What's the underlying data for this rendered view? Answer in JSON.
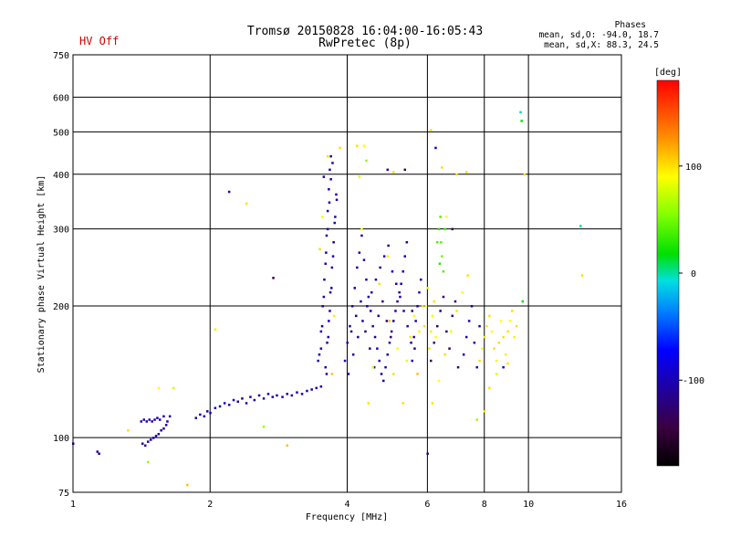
{
  "header": {
    "title_line1": "Tromsø 20150828 16:04:00-16:05:43",
    "title_line2": "RwPretec (8p)",
    "hv_status": "HV Off",
    "hv_color": "#d00000"
  },
  "stats": {
    "heading": "Phases",
    "line1": "mean, sd,O: -94.0, 18.7",
    "line2": "mean, sd,X:  88.3, 24.5"
  },
  "colorbar": {
    "unit_label": "[deg]",
    "ticks": [
      "100",
      "0",
      "-100"
    ],
    "tick_values": [
      100,
      0,
      -100
    ],
    "range": [
      -180,
      180
    ]
  },
  "chart_data": {
    "type": "scatter",
    "xlabel": "Frequency [MHz]",
    "ylabel": "Stationary phase Virtual Height [km]",
    "x_scale": "log",
    "y_scale": "log",
    "xlim": [
      1,
      16
    ],
    "ylim": [
      75,
      750
    ],
    "x_ticks": [
      1,
      2,
      4,
      6,
      8,
      10,
      16
    ],
    "x_tick_labels": [
      "1",
      "2",
      "4",
      "6",
      "8",
      "10",
      "16"
    ],
    "y_ticks": [
      75,
      100,
      200,
      300,
      400,
      500,
      600,
      750
    ],
    "y_tick_labels": [
      "75",
      "100",
      "200",
      "300",
      "400",
      "500",
      "600",
      "750"
    ],
    "grid": true,
    "color_variable": "phase [deg]",
    "points": [
      [
        1.0,
        97,
        -100
      ],
      [
        1.13,
        93,
        -110
      ],
      [
        1.14,
        92,
        -120
      ],
      [
        1.32,
        104,
        100
      ],
      [
        1.41,
        109,
        -100
      ],
      [
        1.43,
        110,
        -110
      ],
      [
        1.45,
        109,
        -105
      ],
      [
        1.47,
        110,
        -100
      ],
      [
        1.49,
        109,
        -110
      ],
      [
        1.51,
        110,
        -100
      ],
      [
        1.53,
        111,
        -105
      ],
      [
        1.55,
        110,
        -100
      ],
      [
        1.58,
        112,
        -95
      ],
      [
        1.61,
        109,
        -100
      ],
      [
        1.63,
        112,
        -110
      ],
      [
        1.42,
        97,
        -105
      ],
      [
        1.44,
        96,
        -110
      ],
      [
        1.46,
        98,
        -100
      ],
      [
        1.48,
        99,
        -105
      ],
      [
        1.5,
        100,
        -100
      ],
      [
        1.52,
        101,
        -110
      ],
      [
        1.54,
        102,
        -95
      ],
      [
        1.56,
        104,
        -100
      ],
      [
        1.58,
        105,
        -110
      ],
      [
        1.6,
        107,
        -100
      ],
      [
        1.46,
        88,
        60
      ],
      [
        1.54,
        130,
        90
      ],
      [
        1.66,
        130,
        80
      ],
      [
        1.78,
        78,
        110
      ],
      [
        1.86,
        111,
        -100
      ],
      [
        1.9,
        113,
        -110
      ],
      [
        1.94,
        112,
        -100
      ],
      [
        1.97,
        115,
        -105
      ],
      [
        2.0,
        114,
        -100
      ],
      [
        2.05,
        117,
        -95
      ],
      [
        2.1,
        118,
        -110
      ],
      [
        2.15,
        120,
        -100
      ],
      [
        2.2,
        119,
        -105
      ],
      [
        2.25,
        122,
        -100
      ],
      [
        2.3,
        121,
        -95
      ],
      [
        2.35,
        123,
        -110
      ],
      [
        2.4,
        120,
        -100
      ],
      [
        2.45,
        124,
        -100
      ],
      [
        2.5,
        122,
        -105
      ],
      [
        2.56,
        125,
        -100
      ],
      [
        2.62,
        123,
        -110
      ],
      [
        2.68,
        126,
        -100
      ],
      [
        2.74,
        124,
        -105
      ],
      [
        2.8,
        125,
        -100
      ],
      [
        2.88,
        124,
        -95
      ],
      [
        2.95,
        126,
        -100
      ],
      [
        3.02,
        125,
        -110
      ],
      [
        3.1,
        127,
        -100
      ],
      [
        3.18,
        126,
        -105
      ],
      [
        3.26,
        128,
        -100
      ],
      [
        3.34,
        129,
        -110
      ],
      [
        3.42,
        130,
        -100
      ],
      [
        3.5,
        131,
        -95
      ],
      [
        2.05,
        177,
        80
      ],
      [
        2.2,
        365,
        -100
      ],
      [
        2.4,
        343,
        100
      ],
      [
        2.62,
        106,
        60
      ],
      [
        2.75,
        232,
        -140
      ],
      [
        2.95,
        96,
        110
      ],
      [
        3.45,
        150,
        -100
      ],
      [
        3.5,
        160,
        -110
      ],
      [
        3.52,
        180,
        -100
      ],
      [
        3.55,
        210,
        -105
      ],
      [
        3.58,
        250,
        -100
      ],
      [
        3.6,
        290,
        -110
      ],
      [
        3.62,
        330,
        -100
      ],
      [
        3.64,
        370,
        -105
      ],
      [
        3.66,
        410,
        -100
      ],
      [
        3.68,
        440,
        -110
      ],
      [
        3.47,
        155,
        -100
      ],
      [
        3.5,
        175,
        -95
      ],
      [
        3.53,
        200,
        -100
      ],
      [
        3.56,
        230,
        -110
      ],
      [
        3.59,
        265,
        -100
      ],
      [
        3.62,
        300,
        -105
      ],
      [
        3.65,
        345,
        -100
      ],
      [
        3.68,
        390,
        -100
      ],
      [
        3.71,
        425,
        -110
      ],
      [
        3.6,
        140,
        -100
      ],
      [
        3.63,
        170,
        -105
      ],
      [
        3.66,
        195,
        -100
      ],
      [
        3.69,
        220,
        -110
      ],
      [
        3.72,
        260,
        -100
      ],
      [
        3.75,
        310,
        -95
      ],
      [
        3.78,
        360,
        -100
      ],
      [
        3.55,
        395,
        -110
      ],
      [
        3.58,
        145,
        -100
      ],
      [
        3.61,
        165,
        -110
      ],
      [
        3.64,
        185,
        -100
      ],
      [
        3.67,
        215,
        -105
      ],
      [
        3.7,
        245,
        -100
      ],
      [
        3.73,
        280,
        -110
      ],
      [
        3.76,
        320,
        -100
      ],
      [
        3.79,
        350,
        -105
      ],
      [
        3.48,
        270,
        100
      ],
      [
        3.52,
        320,
        90
      ],
      [
        3.7,
        140,
        110
      ],
      [
        3.74,
        190,
        95
      ],
      [
        3.62,
        440,
        100
      ],
      [
        3.85,
        460,
        100
      ],
      [
        3.95,
        150,
        -100
      ],
      [
        4.0,
        165,
        -105
      ],
      [
        4.05,
        180,
        -100
      ],
      [
        4.1,
        200,
        -110
      ],
      [
        4.15,
        220,
        -100
      ],
      [
        4.2,
        245,
        -105
      ],
      [
        4.25,
        265,
        -100
      ],
      [
        4.3,
        290,
        -110
      ],
      [
        4.35,
        255,
        -100
      ],
      [
        4.4,
        230,
        -95
      ],
      [
        4.45,
        210,
        -100
      ],
      [
        4.5,
        195,
        -105
      ],
      [
        4.55,
        180,
        -100
      ],
      [
        4.6,
        170,
        -110
      ],
      [
        4.65,
        160,
        -100
      ],
      [
        4.7,
        150,
        -105
      ],
      [
        4.75,
        140,
        -100
      ],
      [
        4.8,
        135,
        -110
      ],
      [
        4.85,
        145,
        -100
      ],
      [
        4.9,
        155,
        -105
      ],
      [
        4.95,
        165,
        -100
      ],
      [
        5.0,
        175,
        -110
      ],
      [
        5.05,
        185,
        -100
      ],
      [
        5.1,
        195,
        -105
      ],
      [
        5.15,
        205,
        -100
      ],
      [
        5.2,
        215,
        -110
      ],
      [
        5.25,
        225,
        -100
      ],
      [
        5.3,
        240,
        -105
      ],
      [
        5.35,
        260,
        -100
      ],
      [
        5.4,
        280,
        -110
      ],
      [
        4.02,
        140,
        -100
      ],
      [
        4.12,
        155,
        -110
      ],
      [
        4.22,
        170,
        -100
      ],
      [
        4.32,
        185,
        -105
      ],
      [
        4.42,
        200,
        -100
      ],
      [
        4.52,
        215,
        -110
      ],
      [
        4.62,
        230,
        -100
      ],
      [
        4.72,
        245,
        -105
      ],
      [
        4.82,
        260,
        -100
      ],
      [
        4.92,
        275,
        -110
      ],
      [
        5.02,
        240,
        -100
      ],
      [
        5.12,
        225,
        -105
      ],
      [
        5.22,
        210,
        -100
      ],
      [
        5.32,
        195,
        -110
      ],
      [
        5.42,
        180,
        -100
      ],
      [
        5.52,
        165,
        -105
      ],
      [
        4.08,
        175,
        -120
      ],
      [
        4.18,
        190,
        -130
      ],
      [
        4.28,
        205,
        -115
      ],
      [
        4.38,
        175,
        -125
      ],
      [
        4.48,
        160,
        -120
      ],
      [
        4.58,
        145,
        -130
      ],
      [
        4.68,
        190,
        -115
      ],
      [
        4.78,
        205,
        -120
      ],
      [
        4.88,
        185,
        -125
      ],
      [
        4.98,
        170,
        -120
      ],
      [
        4.25,
        395,
        80
      ],
      [
        4.3,
        300,
        90
      ],
      [
        4.45,
        120,
        100
      ],
      [
        4.55,
        145,
        80
      ],
      [
        4.7,
        225,
        100
      ],
      [
        4.9,
        260,
        95
      ],
      [
        4.95,
        185,
        110
      ],
      [
        5.05,
        140,
        100
      ],
      [
        5.15,
        160,
        90
      ],
      [
        5.3,
        120,
        100
      ],
      [
        5.4,
        150,
        85
      ],
      [
        5.5,
        170,
        100
      ],
      [
        5.6,
        190,
        90
      ],
      [
        5.7,
        140,
        110
      ],
      [
        5.75,
        175,
        95
      ],
      [
        5.85,
        200,
        100
      ],
      [
        4.2,
        465,
        100
      ],
      [
        4.35,
        465,
        90
      ],
      [
        4.4,
        430,
        60
      ],
      [
        4.9,
        410,
        -100
      ],
      [
        5.05,
        405,
        100
      ],
      [
        5.35,
        410,
        -140
      ],
      [
        5.55,
        150,
        -100
      ],
      [
        5.6,
        170,
        -110
      ],
      [
        5.65,
        185,
        -100
      ],
      [
        5.7,
        200,
        -105
      ],
      [
        5.75,
        215,
        -100
      ],
      [
        5.8,
        230,
        -110
      ],
      [
        5.55,
        195,
        -120
      ],
      [
        5.62,
        160,
        -100
      ],
      [
        5.9,
        180,
        100
      ],
      [
        5.95,
        200,
        90
      ],
      [
        6.0,
        220,
        80
      ],
      [
        6.05,
        160,
        100
      ],
      [
        6.1,
        175,
        95
      ],
      [
        6.15,
        190,
        85
      ],
      [
        6.2,
        205,
        100
      ],
      [
        6.25,
        170,
        90
      ],
      [
        6.3,
        280,
        40
      ],
      [
        6.35,
        300,
        30
      ],
      [
        6.4,
        320,
        40
      ],
      [
        6.45,
        260,
        50
      ],
      [
        6.5,
        240,
        40
      ],
      [
        6.55,
        300,
        35
      ],
      [
        6.42,
        280,
        45
      ],
      [
        6.38,
        250,
        30
      ],
      [
        6.0,
        92,
        -120
      ],
      [
        6.1,
        505,
        100
      ],
      [
        6.25,
        460,
        -100
      ],
      [
        6.45,
        415,
        100
      ],
      [
        6.6,
        320,
        90
      ],
      [
        6.8,
        300,
        -140
      ],
      [
        6.95,
        400,
        100
      ],
      [
        7.3,
        405,
        100
      ],
      [
        6.1,
        150,
        -130
      ],
      [
        6.2,
        165,
        -120
      ],
      [
        6.3,
        180,
        -130
      ],
      [
        6.4,
        195,
        -125
      ],
      [
        6.5,
        210,
        -130
      ],
      [
        6.6,
        175,
        -120
      ],
      [
        6.7,
        160,
        -130
      ],
      [
        6.8,
        190,
        -125
      ],
      [
        6.9,
        205,
        -120
      ],
      [
        7.0,
        145,
        -130
      ],
      [
        6.15,
        120,
        100
      ],
      [
        6.35,
        135,
        90
      ],
      [
        6.55,
        155,
        100
      ],
      [
        6.75,
        175,
        85
      ],
      [
        6.95,
        195,
        100
      ],
      [
        7.15,
        215,
        90
      ],
      [
        7.35,
        235,
        100
      ],
      [
        7.2,
        155,
        -100
      ],
      [
        7.3,
        170,
        -110
      ],
      [
        7.4,
        185,
        -100
      ],
      [
        7.5,
        200,
        -105
      ],
      [
        7.6,
        165,
        -100
      ],
      [
        7.7,
        145,
        -110
      ],
      [
        7.8,
        180,
        -100
      ],
      [
        7.8,
        150,
        100
      ],
      [
        7.9,
        160,
        90
      ],
      [
        8.0,
        170,
        100
      ],
      [
        8.1,
        180,
        95
      ],
      [
        8.2,
        190,
        100
      ],
      [
        8.3,
        175,
        90
      ],
      [
        8.4,
        160,
        100
      ],
      [
        8.5,
        150,
        95
      ],
      [
        8.6,
        165,
        100
      ],
      [
        8.7,
        185,
        90
      ],
      [
        8.8,
        170,
        100
      ],
      [
        8.9,
        155,
        95
      ],
      [
        9.0,
        175,
        100
      ],
      [
        9.1,
        185,
        90
      ],
      [
        9.2,
        195,
        100
      ],
      [
        9.3,
        170,
        95
      ],
      [
        9.4,
        180,
        100
      ],
      [
        7.7,
        110,
        60
      ],
      [
        8.0,
        115,
        100
      ],
      [
        8.2,
        130,
        100
      ],
      [
        8.5,
        140,
        80
      ],
      [
        8.8,
        145,
        -100
      ],
      [
        9.0,
        148,
        100
      ],
      [
        9.6,
        555,
        0
      ],
      [
        9.65,
        530,
        20
      ],
      [
        9.8,
        400,
        100
      ],
      [
        9.7,
        205,
        20
      ],
      [
        13.0,
        305,
        0
      ],
      [
        13.1,
        235,
        100
      ]
    ]
  }
}
